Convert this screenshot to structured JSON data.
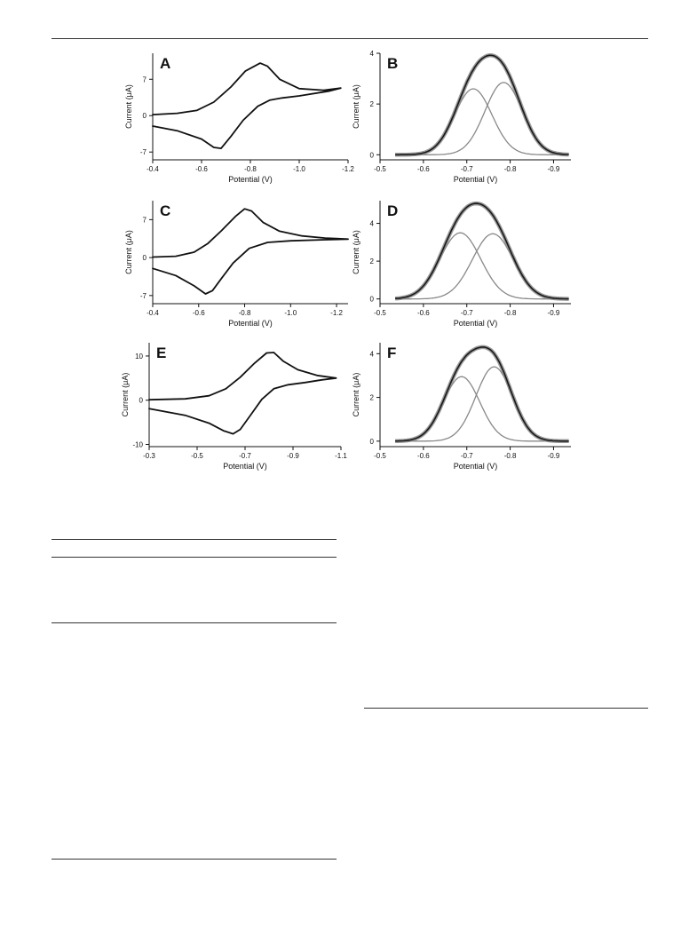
{
  "chart_data": [
    {
      "id": "A",
      "type": "line",
      "panel_label": "A",
      "xlabel": "Potential (V)",
      "ylabel": "Current (μA)",
      "xlim": [
        -0.4,
        -1.2
      ],
      "ylim": [
        -8.5,
        12
      ],
      "xticks": [
        "-0.4",
        "-0.6",
        "-0.8",
        "-1.0",
        "-1.2"
      ],
      "xtick_values": [
        -0.4,
        -0.6,
        -0.8,
        -1.0,
        -1.2
      ],
      "yticks": [
        "-7",
        "0",
        "7"
      ],
      "ytick_values": [
        -7,
        0,
        7
      ],
      "series": [
        {
          "values": [
            [
              -0.4,
              0.2
            ],
            [
              -0.5,
              0.45
            ],
            [
              -0.58,
              1.0
            ],
            [
              -0.65,
              2.6
            ],
            [
              -0.72,
              5.5
            ],
            [
              -0.78,
              8.6
            ],
            [
              -0.84,
              10.1
            ],
            [
              -0.87,
              9.5
            ],
            [
              -0.92,
              7.0
            ],
            [
              -1.0,
              5.2
            ],
            [
              -1.1,
              4.9
            ],
            [
              -1.17,
              5.3
            ],
            [
              -1.12,
              4.7
            ],
            [
              -1.0,
              3.8
            ],
            [
              -0.93,
              3.4
            ],
            [
              -0.88,
              3.0
            ],
            [
              -0.83,
              1.8
            ],
            [
              -0.77,
              -0.9
            ],
            [
              -0.72,
              -4.0
            ],
            [
              -0.68,
              -6.3
            ],
            [
              -0.65,
              -6.1
            ],
            [
              -0.6,
              -4.5
            ],
            [
              -0.5,
              -2.9
            ],
            [
              -0.4,
              -2.0
            ]
          ]
        }
      ]
    },
    {
      "id": "B",
      "type": "line",
      "panel_label": "B",
      "xlabel": "Potential (V)",
      "ylabel": "Current (μA)",
      "xlim": [
        -0.5,
        -0.94
      ],
      "ylim": [
        -0.2,
        4
      ],
      "xticks": [
        "-0.5",
        "-0.6",
        "-0.7",
        "-0.8",
        "-0.9"
      ],
      "xtick_values": [
        -0.5,
        -0.6,
        -0.7,
        -0.8,
        -0.9
      ],
      "yticks": [
        "0",
        "2",
        "4"
      ],
      "ytick_values": [
        0,
        2,
        4
      ],
      "series": [
        {
          "role": "component",
          "gaussian": {
            "center": -0.715,
            "height": 2.6,
            "sigma": 0.043
          }
        },
        {
          "role": "component",
          "gaussian": {
            "center": -0.785,
            "height": 2.85,
            "sigma": 0.043
          }
        },
        {
          "role": "fit",
          "sum_of_components": true
        }
      ]
    },
    {
      "id": "C",
      "type": "line",
      "panel_label": "C",
      "xlabel": "Potential (V)",
      "ylabel": "Current (μA)",
      "xlim": [
        -0.4,
        -1.25
      ],
      "ylim": [
        -8.5,
        10.5
      ],
      "xticks": [
        "-0.4",
        "-0.6",
        "-0.8",
        "-1.0",
        "-1.2"
      ],
      "xtick_values": [
        -0.4,
        -0.6,
        -0.8,
        -1.0,
        -1.2
      ],
      "yticks": [
        "-7",
        "0",
        "7"
      ],
      "ytick_values": [
        -7,
        0,
        7
      ],
      "series": [
        {
          "values": [
            [
              -0.4,
              0.1
            ],
            [
              -0.5,
              0.25
            ],
            [
              -0.58,
              1.0
            ],
            [
              -0.64,
              2.6
            ],
            [
              -0.7,
              5.0
            ],
            [
              -0.76,
              7.6
            ],
            [
              -0.8,
              9.0
            ],
            [
              -0.83,
              8.6
            ],
            [
              -0.88,
              6.5
            ],
            [
              -0.95,
              4.9
            ],
            [
              -1.05,
              4.0
            ],
            [
              -1.15,
              3.6
            ],
            [
              -1.25,
              3.4
            ],
            [
              -1.15,
              3.3
            ],
            [
              -1.0,
              3.1
            ],
            [
              -0.9,
              2.8
            ],
            [
              -0.82,
              1.7
            ],
            [
              -0.75,
              -1.0
            ],
            [
              -0.7,
              -3.8
            ],
            [
              -0.66,
              -6.1
            ],
            [
              -0.63,
              -6.7
            ],
            [
              -0.58,
              -5.2
            ],
            [
              -0.5,
              -3.3
            ],
            [
              -0.4,
              -2.0
            ]
          ]
        }
      ]
    },
    {
      "id": "D",
      "type": "line",
      "panel_label": "D",
      "xlabel": "Potential (V)",
      "ylabel": "Current (μA)",
      "xlim": [
        -0.5,
        -0.94
      ],
      "ylim": [
        -0.25,
        5.2
      ],
      "xticks": [
        "-0.5",
        "-0.6",
        "-0.7",
        "-0.8",
        "-0.9"
      ],
      "xtick_values": [
        -0.5,
        -0.6,
        -0.7,
        -0.8,
        -0.9
      ],
      "yticks": [
        "0",
        "2",
        "4"
      ],
      "ytick_values": [
        0,
        2,
        4
      ],
      "series": [
        {
          "role": "component",
          "gaussian": {
            "center": -0.685,
            "height": 3.5,
            "sigma": 0.047
          }
        },
        {
          "role": "component",
          "gaussian": {
            "center": -0.76,
            "height": 3.45,
            "sigma": 0.047
          }
        },
        {
          "role": "fit",
          "sum_of_components": true
        }
      ]
    },
    {
      "id": "E",
      "type": "line",
      "panel_label": "E",
      "xlabel": "Potential (V)",
      "ylabel": "Current (μA)",
      "xlim": [
        -0.3,
        -1.1
      ],
      "ylim": [
        -10.5,
        13
      ],
      "xticks": [
        "-0.3",
        "-0.5",
        "-0.7",
        "-0.9",
        "-1.1"
      ],
      "xtick_values": [
        -0.3,
        -0.5,
        -0.7,
        -0.9,
        -1.1
      ],
      "yticks": [
        "-10",
        "0",
        "10"
      ],
      "ytick_values": [
        -10,
        0,
        10
      ],
      "series": [
        {
          "values": [
            [
              -0.3,
              0.1
            ],
            [
              -0.45,
              0.3
            ],
            [
              -0.55,
              1.0
            ],
            [
              -0.62,
              2.6
            ],
            [
              -0.68,
              5.2
            ],
            [
              -0.74,
              8.4
            ],
            [
              -0.79,
              10.7
            ],
            [
              -0.82,
              10.8
            ],
            [
              -0.86,
              8.8
            ],
            [
              -0.92,
              6.9
            ],
            [
              -1.0,
              5.6
            ],
            [
              -1.08,
              5.0
            ],
            [
              -1.02,
              4.6
            ],
            [
              -0.95,
              4.0
            ],
            [
              -0.88,
              3.5
            ],
            [
              -0.82,
              2.6
            ],
            [
              -0.77,
              0.2
            ],
            [
              -0.72,
              -3.6
            ],
            [
              -0.68,
              -6.6
            ],
            [
              -0.65,
              -7.6
            ],
            [
              -0.61,
              -6.9
            ],
            [
              -0.55,
              -5.2
            ],
            [
              -0.45,
              -3.4
            ],
            [
              -0.3,
              -1.9
            ]
          ]
        }
      ]
    },
    {
      "id": "F",
      "type": "line",
      "panel_label": "F",
      "xlabel": "Potential (V)",
      "ylabel": "Current (μA)",
      "xlim": [
        -0.5,
        -0.94
      ],
      "ylim": [
        -0.25,
        4.5
      ],
      "xticks": [
        "-0.5",
        "-0.6",
        "-0.7",
        "-0.8",
        "-0.9"
      ],
      "xtick_values": [
        -0.5,
        -0.6,
        -0.7,
        -0.8,
        -0.9
      ],
      "yticks": [
        "0",
        "2",
        "4"
      ],
      "ytick_values": [
        0,
        2,
        4
      ],
      "series": [
        {
          "role": "component",
          "gaussian": {
            "center": -0.688,
            "height": 2.95,
            "sigma": 0.042
          }
        },
        {
          "role": "component",
          "gaussian": {
            "center": -0.763,
            "height": 3.4,
            "sigma": 0.042
          }
        },
        {
          "role": "fit",
          "sum_of_components": true
        }
      ]
    }
  ],
  "colors": {
    "cv_line": "#111111",
    "fit_line": "#1a1a1a",
    "data_halo": "#8a8a8a",
    "component_line": "#888888",
    "axis": "#111111",
    "rule": "#333333"
  }
}
